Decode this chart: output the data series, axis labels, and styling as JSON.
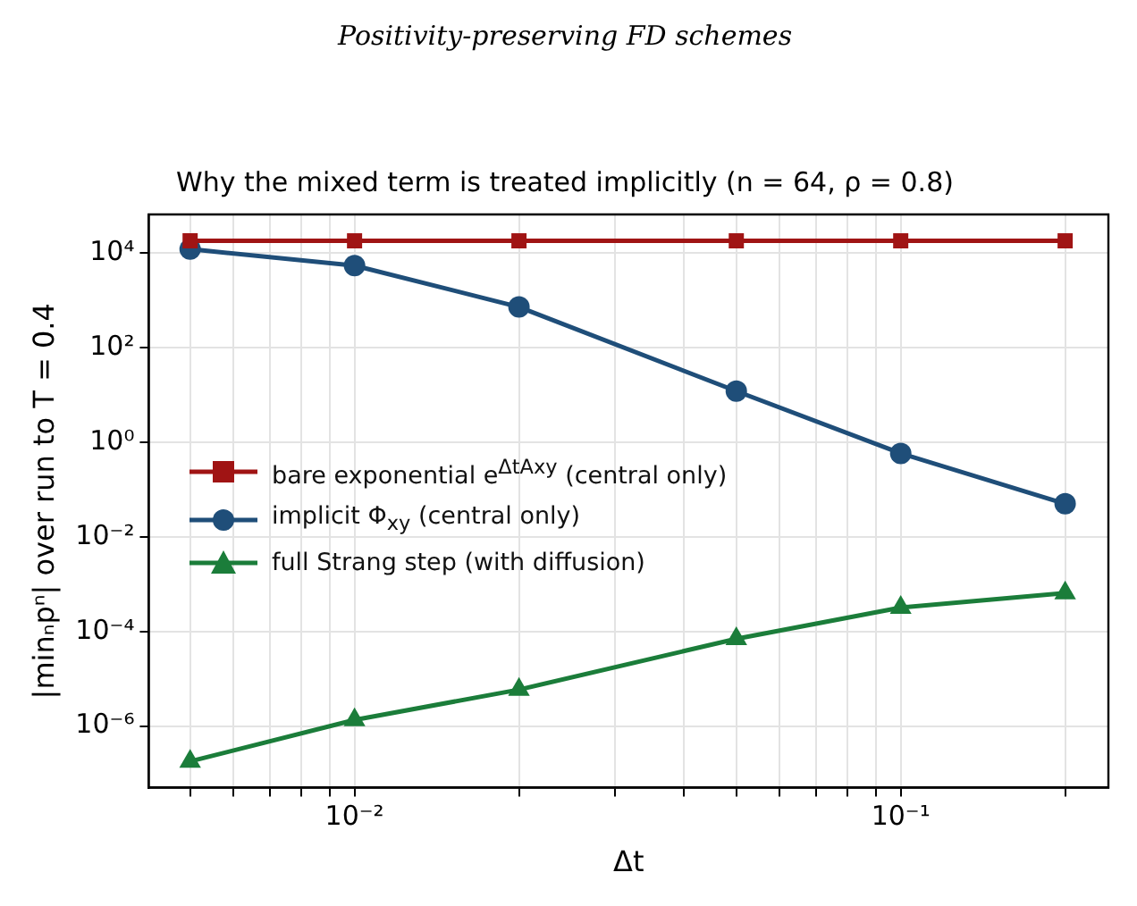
{
  "chart_data": {
    "type": "line",
    "title": "Positivity-preserving FD schemes",
    "subtitle": "Why the mixed term is treated implicitly (n = 64, ρ = 0.8)",
    "xlabel": "Δt",
    "ylabel": "|minₙpⁿ| over run to T = 0.4",
    "x": [
      0.005,
      0.01,
      0.02,
      0.05,
      0.1,
      0.2
    ],
    "series": [
      {
        "name": "bare exponential e$^{ΔtAxy}$ (central only)",
        "color": "#a01414",
        "marker": "square",
        "values": [
          18000,
          18000,
          18000,
          18000,
          18000,
          18000
        ]
      },
      {
        "name": "implicit Φ$_{xy}$ (central only)",
        "color": "#1f4e79",
        "marker": "circle",
        "values": [
          12000,
          5400,
          720,
          12,
          0.58,
          0.05
        ]
      },
      {
        "name": "full Strang step (with diffusion)",
        "color": "#1b7d3a",
        "marker": "triangle",
        "values": [
          1.8e-07,
          1.35e-06,
          5.9e-06,
          7e-05,
          0.00032,
          0.00065
        ]
      }
    ],
    "log": "xy",
    "xlim": [
      0.0042,
      0.24
    ],
    "ylim": [
      5e-08,
      65000
    ],
    "xticks": [
      {
        "value": 0.005,
        "label": null
      },
      {
        "value": 0.006,
        "label": null
      },
      {
        "value": 0.007,
        "label": null
      },
      {
        "value": 0.008,
        "label": null
      },
      {
        "value": 0.009,
        "label": null
      },
      {
        "value": 0.01,
        "label": "10⁻²"
      },
      {
        "value": 0.02,
        "label": null
      },
      {
        "value": 0.03,
        "label": null
      },
      {
        "value": 0.04,
        "label": null
      },
      {
        "value": 0.05,
        "label": null
      },
      {
        "value": 0.06,
        "label": null
      },
      {
        "value": 0.07,
        "label": null
      },
      {
        "value": 0.08,
        "label": null
      },
      {
        "value": 0.09,
        "label": null
      },
      {
        "value": 0.1,
        "label": "10⁻¹"
      },
      {
        "value": 0.2,
        "label": null
      }
    ],
    "yticks": [
      {
        "value": 1e-06,
        "label": "10⁻⁶"
      },
      {
        "value": 0.0001,
        "label": "10⁻⁴"
      },
      {
        "value": 0.01,
        "label": "10⁻²"
      },
      {
        "value": 1,
        "label": "10⁰"
      },
      {
        "value": 100,
        "label": "10²"
      },
      {
        "value": 10000,
        "label": "10⁴"
      }
    ],
    "grid": true,
    "legend": "center left",
    "line_style": "solid"
  }
}
